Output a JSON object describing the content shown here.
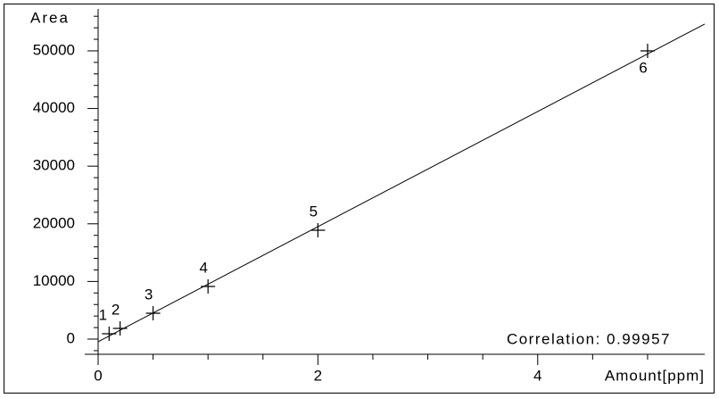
{
  "chart_data": {
    "type": "calibration",
    "y_label": "Area",
    "x_label": "Amount[ppm]",
    "annotation": "Correlation: 0.99957",
    "points": {
      "x": [
        0.1,
        0.2,
        0.5,
        1,
        2,
        5
      ],
      "y": [
        930,
        1860,
        4490,
        9130,
        18880,
        50000
      ],
      "labels": [
        "1",
        "2",
        "3",
        "4",
        "5",
        "6"
      ],
      "color": "#000000"
    },
    "fit_line": {
      "x": [
        0,
        5.52
      ],
      "y": [
        -460,
        54650
      ],
      "color": "#000000"
    },
    "xlim": [
      0,
      5.52
    ],
    "ylim": [
      -2630,
      57270
    ],
    "xticks": [
      0,
      2,
      4
    ],
    "yticks": [
      0,
      10000,
      20000,
      30000,
      40000,
      50000
    ],
    "xticks_minor": [
      0.5,
      1,
      1.5,
      2.5,
      3,
      3.5,
      4.5,
      5
    ],
    "yticks_minor": [
      -2000,
      2000,
      4000,
      6000,
      8000,
      12000,
      14000,
      16000,
      18000,
      22000,
      24000,
      26000,
      28000,
      32000,
      34000,
      36000,
      38000,
      42000,
      44000,
      46000,
      48000,
      52000,
      54000,
      56000
    ]
  }
}
